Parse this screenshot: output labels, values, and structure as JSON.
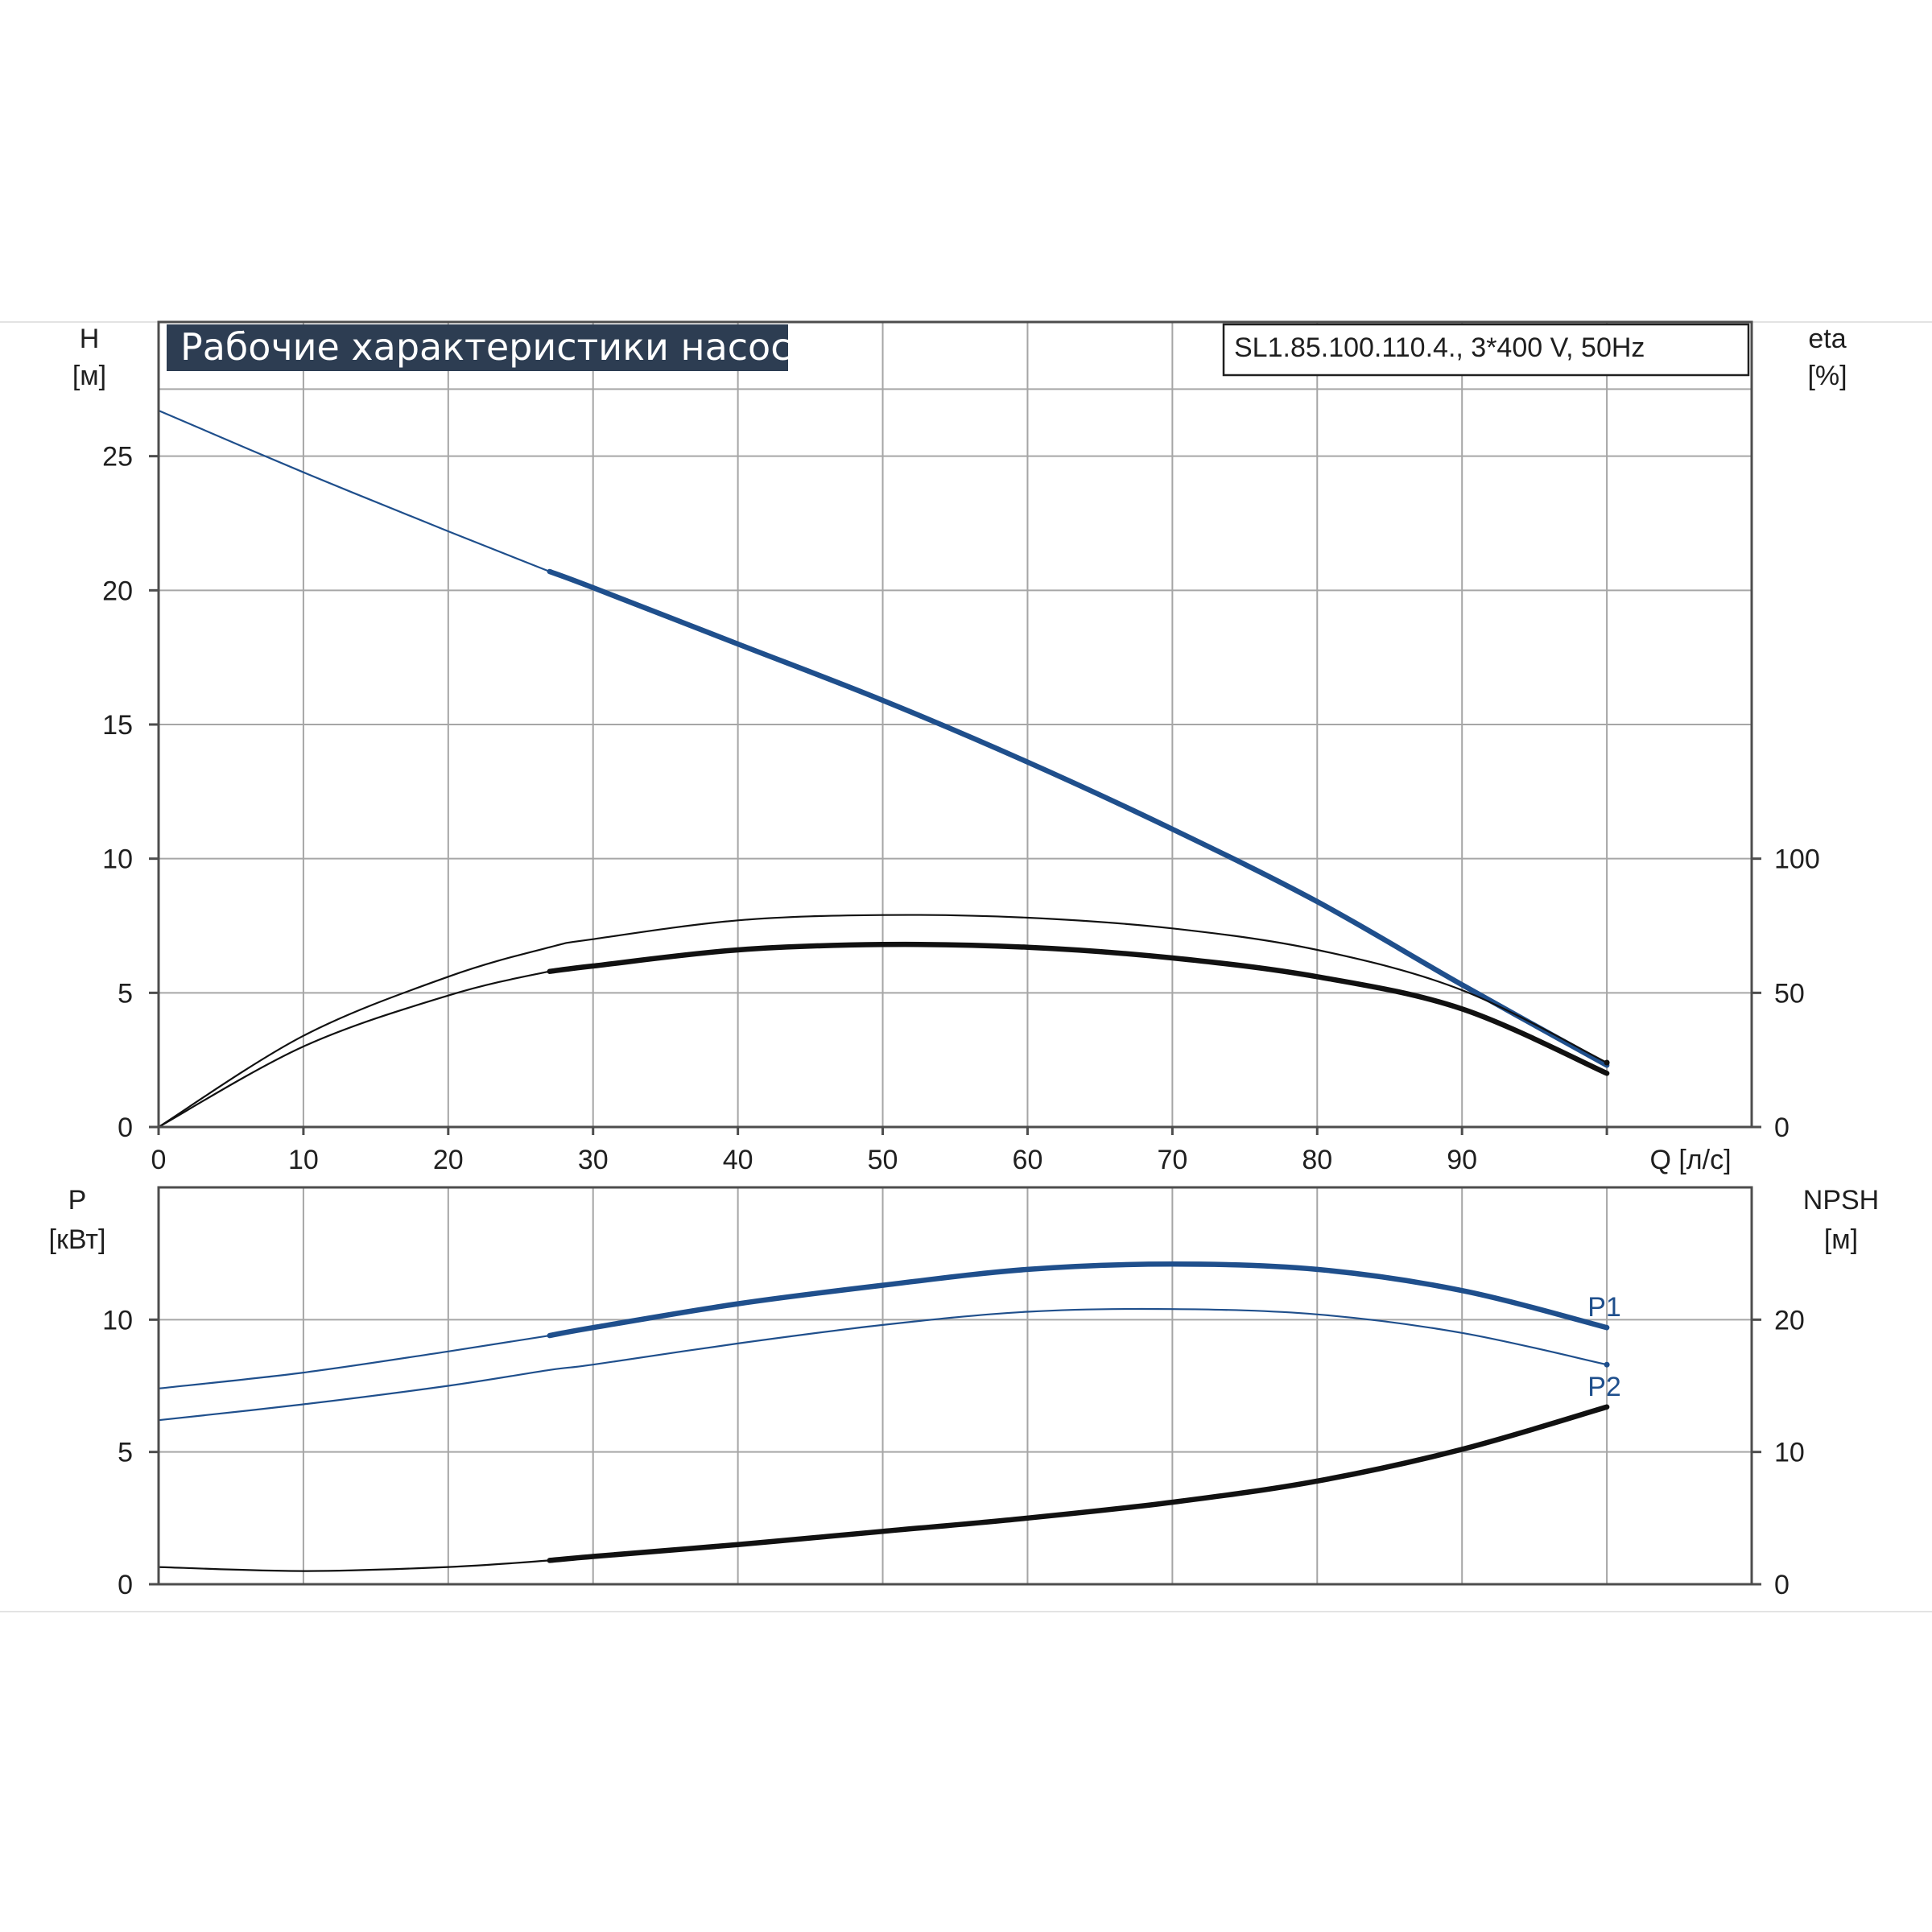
{
  "title": "Рабочие характеристики насоса",
  "model": "SL1.85.100.110.4., 3*400 V, 50Hz",
  "colors": {
    "blue": "#1f4f8c",
    "black": "#111111",
    "title_bg": "#2d3d52"
  },
  "chart_data": [
    {
      "type": "line",
      "panel": "head-efficiency",
      "xlabel": "Q [л/с]",
      "xlim": [
        0,
        110
      ],
      "x_ticks": [
        0,
        10,
        20,
        30,
        40,
        50,
        60,
        70,
        80,
        90
      ],
      "ylabel_left": {
        "name": "H",
        "unit": "[м]"
      },
      "ylim_left": [
        0,
        30
      ],
      "y_ticks_left": [
        0,
        5,
        10,
        15,
        20,
        25
      ],
      "ylabel_right": {
        "name": "eta",
        "unit": "[%]"
      },
      "ylim_right": [
        0,
        300
      ],
      "y_ticks_right": [
        0,
        50,
        100
      ],
      "grid": true,
      "series": [
        {
          "axis": "left",
          "color": "#1f4f8c",
          "operating_from": 27,
          "x": [
            0,
            10,
            20,
            27,
            30,
            40,
            50,
            60,
            70,
            80,
            90,
            100
          ],
          "y": [
            26.7,
            24.4,
            22.2,
            20.7,
            20.1,
            18.0,
            15.9,
            13.6,
            11.1,
            8.4,
            5.3,
            2.3
          ]
        },
        {
          "axis": "right",
          "color": "#111111",
          "operating_from": 100,
          "x": [
            0,
            10,
            20,
            27,
            30,
            40,
            50,
            60,
            70,
            80,
            90,
            100
          ],
          "y": [
            0,
            34,
            56,
            67,
            70,
            77,
            79,
            78,
            74,
            66,
            51,
            24
          ]
        },
        {
          "axis": "right",
          "color": "#111111",
          "operating_from": 27,
          "x": [
            0,
            10,
            20,
            27,
            30,
            40,
            50,
            60,
            70,
            80,
            90,
            100
          ],
          "y": [
            0,
            30,
            49,
            58,
            60,
            66,
            68,
            67,
            63,
            56,
            44,
            20
          ]
        }
      ]
    },
    {
      "type": "line",
      "panel": "power-npsh",
      "xlim": [
        0,
        110
      ],
      "ylabel_left": {
        "name": "P",
        "unit": "[кВт]"
      },
      "ylim_left": [
        0,
        15
      ],
      "y_ticks_left": [
        0,
        5,
        10
      ],
      "ylabel_right": {
        "name": "NPSH",
        "unit": "[м]"
      },
      "ylim_right": [
        0,
        30
      ],
      "y_ticks_right": [
        0,
        10,
        20
      ],
      "grid": true,
      "series": [
        {
          "name": "P1",
          "axis": "left",
          "color": "#1f4f8c",
          "operating_from": 27,
          "x": [
            0,
            10,
            20,
            27,
            30,
            40,
            50,
            60,
            70,
            80,
            90,
            100
          ],
          "y": [
            7.4,
            8.0,
            8.8,
            9.4,
            9.7,
            10.6,
            11.3,
            11.9,
            12.1,
            11.9,
            11.1,
            9.7
          ]
        },
        {
          "name": "P2",
          "axis": "left",
          "color": "#1f4f8c",
          "operating_from": 100,
          "x": [
            0,
            10,
            20,
            27,
            30,
            40,
            50,
            60,
            70,
            80,
            90,
            100
          ],
          "y": [
            6.2,
            6.8,
            7.5,
            8.1,
            8.3,
            9.1,
            9.8,
            10.3,
            10.4,
            10.2,
            9.5,
            8.3
          ]
        },
        {
          "axis": "right",
          "color": "#111111",
          "operating_from": 27,
          "x": [
            0,
            10,
            20,
            27,
            30,
            40,
            50,
            60,
            70,
            80,
            90,
            100
          ],
          "y": [
            1.3,
            1.0,
            1.3,
            1.8,
            2.1,
            3.0,
            4.0,
            5.0,
            6.2,
            7.8,
            10.2,
            13.4
          ]
        }
      ]
    }
  ]
}
